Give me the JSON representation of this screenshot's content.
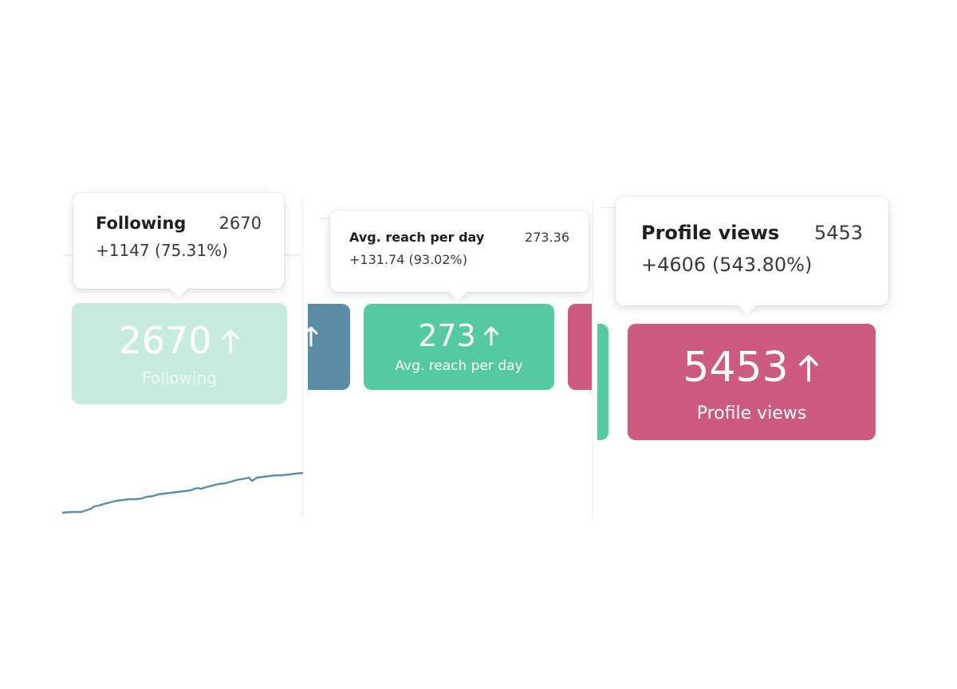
{
  "tooltips": {
    "following": {
      "name": "Following",
      "value": "2670",
      "delta": "+1147 (75.31%)"
    },
    "reach": {
      "name": "Avg. reach per day",
      "value": "273.36",
      "delta": "+131.74 (93.02%)"
    },
    "profile": {
      "name": "Profile views",
      "value": "5453",
      "delta": "+4606 (543.80%)"
    }
  },
  "cards": {
    "following": {
      "value": "2670",
      "label": "Following",
      "color": "#c7ecdd",
      "trend_icon": "arrow-up-icon"
    },
    "reach": {
      "value": "273",
      "label": "Avg. reach per day",
      "color": "#55c9a0",
      "trend_icon": "arrow-up-icon"
    },
    "profile": {
      "value": "5453",
      "label": "Profile views",
      "color": "#cd5b80",
      "trend_icon": "arrow-up-icon"
    }
  },
  "colors": {
    "blue_card": "#5b8ea6",
    "pink_card": "#cd5b80",
    "green_card": "#55c9a0",
    "sparkline": "#5b8ea6"
  }
}
